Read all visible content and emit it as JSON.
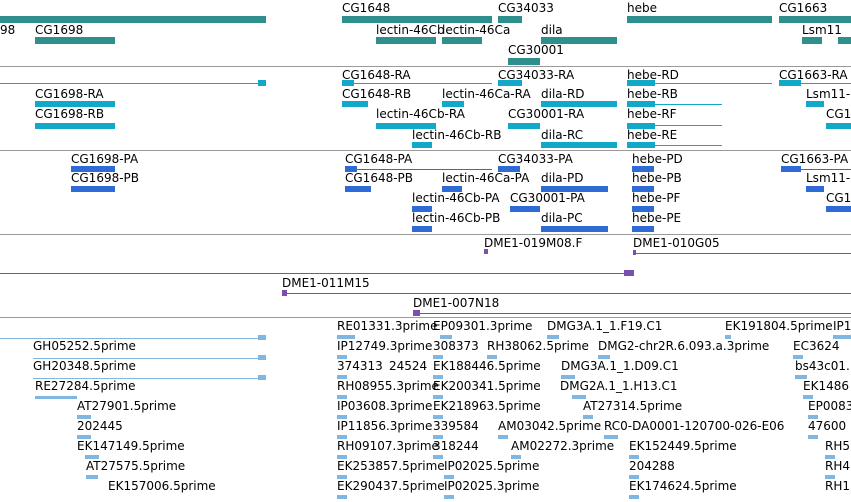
{
  "gene_track": {
    "labels": [
      "98",
      "CG1698",
      "CG1648",
      "lectin-46Cb",
      "lectin-46Ca",
      "CG34033",
      "dila",
      "CG30001",
      "hebe",
      "CG1663",
      "Lsm11"
    ]
  },
  "transcript_track": {
    "labels": [
      "CG1648-RA",
      "CG34033-RA",
      "hebe-RD",
      "CG1663-RA",
      "CG1698-RA",
      "CG1648-RB",
      "lectin-46Ca-RA",
      "dila-RD",
      "hebe-RB",
      "Lsm11-",
      "CG1698-RB",
      "lectin-46Cb-RA",
      "CG30001-RA",
      "hebe-RF",
      "CG1",
      "lectin-46Cb-RB",
      "dila-RC",
      "hebe-RE"
    ]
  },
  "peptide_track": {
    "labels": [
      "CG1698-PA",
      "CG1648-PA",
      "CG34033-PA",
      "hebe-PD",
      "CG1663-PA",
      "CG1698-PB",
      "CG1648-PB",
      "lectin-46Ca-PA",
      "dila-PD",
      "hebe-PB",
      "Lsm11-",
      "lectin-46Cb-PA",
      "CG30001-PA",
      "hebe-PF",
      "CG1",
      "lectin-46Cb-PB",
      "dila-PC",
      "hebe-PE"
    ]
  },
  "clone_track": {
    "labels": [
      "DME1-019M08.F",
      "DME1-010G05",
      "DME1-011M15",
      "DME1-007N18"
    ]
  },
  "est_track": {
    "labels": [
      "RE01331.3prime",
      "EP09301.3prime",
      "DMG3A.1_1.F19.C1",
      "EK191804.5prime",
      "IP1",
      "GH05252.5prime",
      "IP12749.3prime",
      "308373",
      "RH38062.5prime",
      "DMG2-chr2R.6.093.a.3prime",
      "EC3624",
      "GH20348.5prime",
      "374313",
      "24524",
      "EK188446.5prime",
      "DMG3A.1_1.D09.C1",
      "bs43c01.",
      "RE27284.5prime",
      "RH08955.3prime",
      "EK200341.5prime",
      "DMG2A.1_1.H13.C1",
      "EK1486",
      "AT27901.5prime",
      "IP03608.3prime",
      "EK218963.5prime",
      "AT27314.5prime",
      "EP0083",
      "202445",
      "IP11856.3prime",
      "339584",
      "AM03042.5prime",
      "RC0-DA0001-120700-026-E06",
      "47600",
      "EK147149.5prime",
      "RH09107.3prime",
      "318244",
      "AM02272.3prime",
      "EK152449.5prime",
      "RH5",
      "AT27575.5prime",
      "EK253857.5prime",
      "IP02025.5prime",
      "204288",
      "RH4",
      "EK157006.5prime",
      "EK290437.5prime",
      "IP02025.3prime",
      "EK174624.5prime",
      "RH1"
    ]
  },
  "colors": {
    "gene": "#2e8f8c",
    "transcript": "#11a9c7",
    "peptide": "#2f6bd4",
    "clone": "#7a4fb0",
    "est": "#7fb7e2",
    "separator": "#9a9a9a"
  }
}
